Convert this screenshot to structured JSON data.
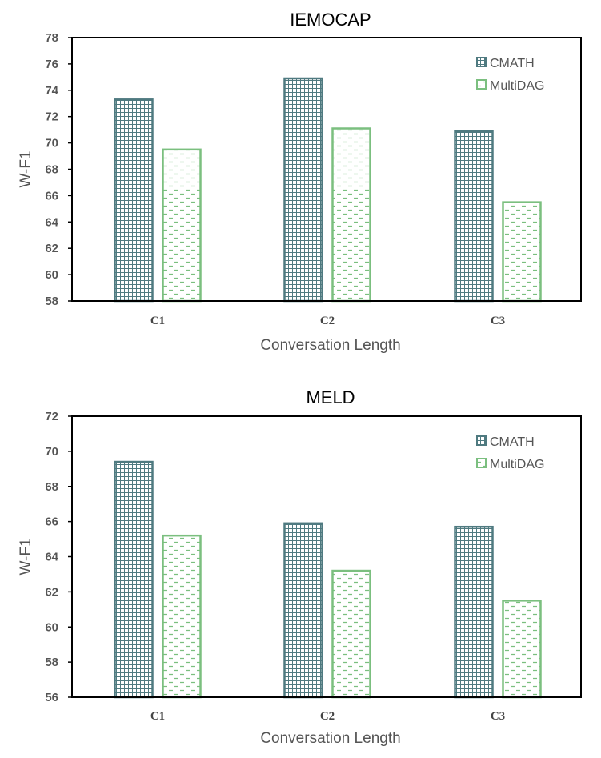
{
  "chart_data": [
    {
      "type": "bar",
      "title": "IEMOCAP",
      "xlabel": "Conversation Length",
      "ylabel": "W-F1",
      "categories": [
        "C1",
        "C2",
        "C3"
      ],
      "ylim": [
        58,
        78
      ],
      "yticks": [
        58,
        60,
        62,
        64,
        66,
        68,
        70,
        72,
        74,
        76,
        78
      ],
      "legend_position": "top-right",
      "series": [
        {
          "name": "CMATH",
          "values": [
            73.3,
            74.9,
            70.9
          ],
          "color": "#4f7a80",
          "pattern": "grid"
        },
        {
          "name": "MultiDAG",
          "values": [
            69.5,
            71.1,
            65.5
          ],
          "color": "#7bbf7f",
          "pattern": "dashed"
        }
      ]
    },
    {
      "type": "bar",
      "title": "MELD",
      "xlabel": "Conversation Length",
      "ylabel": "W-F1",
      "categories": [
        "C1",
        "C2",
        "C3"
      ],
      "ylim": [
        56,
        72
      ],
      "yticks": [
        56,
        58,
        60,
        62,
        64,
        66,
        68,
        70,
        72
      ],
      "legend_position": "top-right",
      "series": [
        {
          "name": "CMATH",
          "values": [
            69.4,
            65.9,
            65.7
          ],
          "color": "#4f7a80",
          "pattern": "grid"
        },
        {
          "name": "MultiDAG",
          "values": [
            65.2,
            63.2,
            61.5
          ],
          "color": "#7bbf7f",
          "pattern": "dashed"
        }
      ]
    }
  ]
}
